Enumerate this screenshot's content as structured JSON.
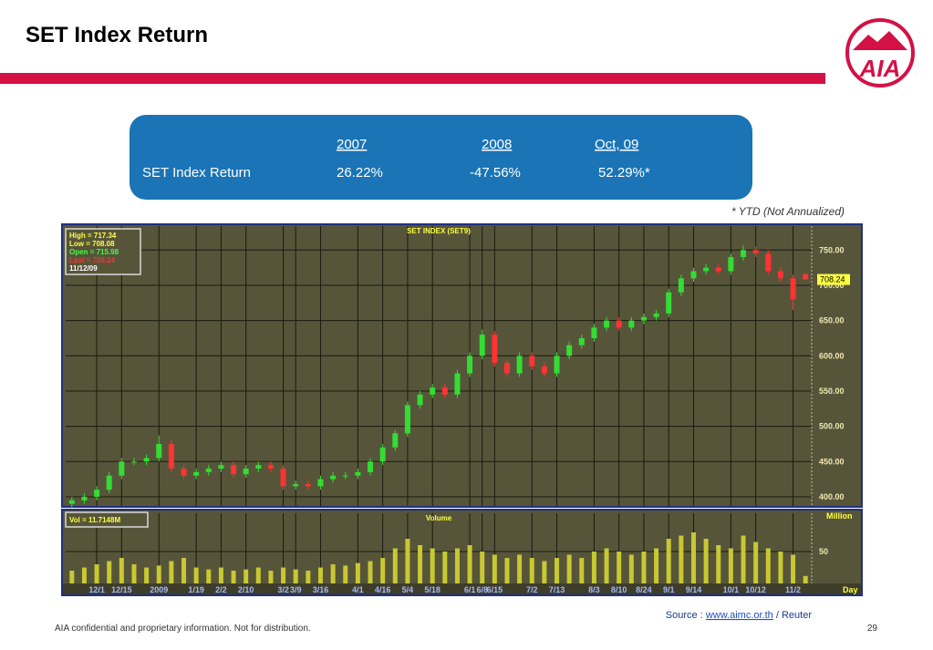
{
  "header": {
    "title": "SET Index Return"
  },
  "logo": {
    "text": "AIA"
  },
  "table": {
    "columns": [
      "2007",
      "2008",
      "Oct, 09"
    ],
    "rows": [
      [
        "SET Index Return",
        "26.22%",
        "-47.56%",
        "52.29%*"
      ]
    ]
  },
  "note": "* YTD (Not Annualized)",
  "source": {
    "prefix": "Source :",
    "link": "www.aimc.or.th",
    "suffix": "/ Reuter"
  },
  "footer": {
    "text": "AIA confidential and proprietary information. Not for distribution.",
    "page": "29"
  },
  "chart_data": [
    {
      "type": "candlestick",
      "title": "SET INDEX (SET9)",
      "info": [
        "High  = 717.34",
        "Low   = 708.08",
        "Open  = 715.98",
        "Last  = 708.24",
        "11/12/09"
      ],
      "open": [
        390,
        395,
        400,
        410,
        430,
        450,
        450,
        455,
        475,
        440,
        430,
        435,
        440,
        445,
        432,
        440,
        445,
        440,
        415,
        418,
        415,
        425,
        430,
        430,
        435,
        450,
        470,
        490,
        530,
        545,
        555,
        545,
        575,
        600,
        630,
        590,
        575,
        600,
        585,
        575,
        600,
        615,
        625,
        640,
        650,
        640,
        650,
        655,
        660,
        690,
        710,
        720,
        725,
        720,
        740,
        750,
        745,
        720,
        710,
        715.98
      ],
      "high": [
        400,
        405,
        415,
        435,
        455,
        455,
        460,
        487,
        480,
        445,
        440,
        445,
        450,
        450,
        445,
        450,
        450,
        445,
        423,
        423,
        430,
        435,
        435,
        440,
        455,
        475,
        495,
        535,
        550,
        560,
        560,
        580,
        605,
        637,
        635,
        595,
        605,
        605,
        590,
        605,
        620,
        630,
        645,
        655,
        655,
        655,
        660,
        665,
        695,
        715,
        725,
        730,
        730,
        745,
        757,
        755,
        750,
        725,
        715,
        717.34
      ],
      "low": [
        385,
        390,
        395,
        405,
        425,
        445,
        445,
        450,
        435,
        425,
        425,
        430,
        435,
        427,
        427,
        435,
        435,
        410,
        410,
        410,
        410,
        420,
        425,
        425,
        430,
        445,
        465,
        485,
        525,
        540,
        540,
        540,
        570,
        595,
        585,
        570,
        570,
        580,
        570,
        570,
        595,
        610,
        620,
        635,
        635,
        635,
        645,
        650,
        655,
        685,
        705,
        715,
        715,
        715,
        735,
        740,
        715,
        705,
        665,
        708.08
      ],
      "close": [
        395,
        400,
        410,
        430,
        450,
        450,
        455,
        475,
        440,
        430,
        435,
        440,
        445,
        432,
        440,
        445,
        440,
        415,
        418,
        415,
        425,
        430,
        430,
        435,
        450,
        470,
        490,
        530,
        545,
        555,
        545,
        575,
        600,
        630,
        590,
        575,
        600,
        585,
        575,
        600,
        615,
        625,
        640,
        650,
        640,
        650,
        655,
        660,
        690,
        710,
        720,
        725,
        720,
        740,
        750,
        745,
        720,
        710,
        680,
        708.24
      ],
      "up_color": "#33dd33",
      "down_color": "#ff3333",
      "ylim": [
        387,
        784
      ],
      "yticks": [
        {
          "value": 400,
          "label": "400.00"
        },
        {
          "value": 450,
          "label": "450.00"
        },
        {
          "value": 500,
          "label": "500.00"
        },
        {
          "value": 550,
          "label": "550.00"
        },
        {
          "value": 600,
          "label": "600.00"
        },
        {
          "value": 650,
          "label": "650.00"
        },
        {
          "value": 700,
          "label": "700.00"
        },
        {
          "value": 750,
          "label": "750.00"
        }
      ],
      "grid": true
    },
    {
      "type": "bar",
      "title": "Volume",
      "legend": "Vol   = 11.7148M",
      "unit_label": "Million",
      "x_label": "Day",
      "categories": [
        null,
        null,
        "12/1",
        null,
        "12/15",
        null,
        null,
        "2009",
        null,
        null,
        "1/19",
        null,
        "2/2",
        null,
        "2/10",
        null,
        null,
        "3/2",
        "3/9",
        null,
        "3/16",
        null,
        null,
        "4/1",
        null,
        "4/16",
        null,
        "5/4",
        null,
        "5/18",
        null,
        null,
        "6/1",
        "6/8",
        "6/15",
        null,
        null,
        "7/2",
        null,
        "7/13",
        null,
        null,
        "8/3",
        null,
        "8/10",
        null,
        "8/24",
        null,
        "9/1",
        null,
        "9/14",
        null,
        null,
        "10/1",
        null,
        "10/12",
        null,
        null,
        "11/2",
        null
      ],
      "values": [
        20,
        25,
        30,
        35,
        40,
        30,
        25,
        28,
        35,
        40,
        25,
        22,
        25,
        20,
        22,
        25,
        20,
        25,
        22,
        20,
        25,
        30,
        28,
        32,
        35,
        40,
        55,
        70,
        60,
        55,
        50,
        55,
        60,
        50,
        45,
        40,
        45,
        40,
        35,
        40,
        45,
        40,
        50,
        55,
        50,
        45,
        50,
        55,
        70,
        75,
        80,
        70,
        60,
        55,
        75,
        65,
        55,
        50,
        45,
        11.7148
      ],
      "color": "#c8c832",
      "ylim": [
        0,
        110
      ],
      "yticks": [
        50
      ],
      "grid": true
    }
  ]
}
